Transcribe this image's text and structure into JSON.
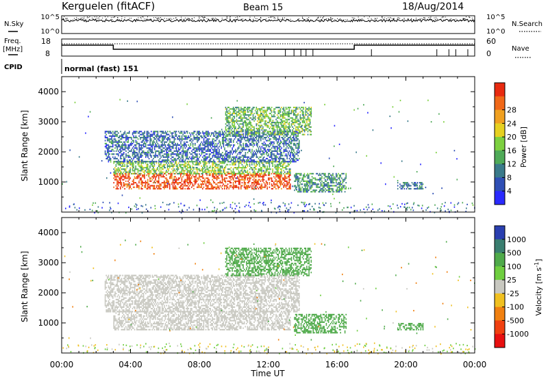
{
  "header": {
    "station": "Kerguelen (fitACF)",
    "beam": "Beam 15",
    "date": "18/Aug/2014"
  },
  "top_panels": {
    "nsky_label": "N.Sky",
    "nsky_ticks": [
      "10^5",
      "10^0"
    ],
    "nsearch_label": "N.Search",
    "nsearch_ticks": [
      "10^5",
      "10^0"
    ],
    "freq_label_1": "Freq.",
    "freq_label_2": "[MHz]",
    "freq_ticks": [
      "18",
      "8"
    ],
    "nave_label": "Nave",
    "nave_ticks": [
      "60",
      "0"
    ],
    "cpid_label": "CPID",
    "cpid_text": "normal (fast) 151"
  },
  "chart_data": [
    {
      "type": "heatmap",
      "name": "power",
      "ylabel": "Slant Range [km]",
      "ylim": [
        0,
        4500
      ],
      "yticks": [
        "1000",
        "2000",
        "3000",
        "4000"
      ],
      "colorbar_label": "Power [dB]",
      "colorbar_ticks": [
        "4",
        "8",
        "12",
        "16",
        "20",
        "24",
        "28"
      ],
      "colorbar_range": [
        0,
        30
      ],
      "colors": [
        "#2a2aff",
        "#2f4fb5",
        "#3a7a8a",
        "#4faa58",
        "#7dd040",
        "#e6d020",
        "#f0a020",
        "#f06818",
        "#e82a10"
      ],
      "regions": [
        {
          "t": [
            3.0,
            13.3
          ],
          "r": [
            800,
            1300
          ],
          "level": 27
        },
        {
          "t": [
            3.0,
            13.3
          ],
          "r": [
            1300,
            1700
          ],
          "level": 14
        },
        {
          "t": [
            2.5,
            13.8
          ],
          "r": [
            1700,
            2700
          ],
          "level": 7
        },
        {
          "t": [
            9.5,
            14.5
          ],
          "r": [
            2600,
            3500
          ],
          "level": 13
        },
        {
          "t": [
            13.5,
            16.5
          ],
          "r": [
            700,
            1300
          ],
          "level": 10
        },
        {
          "t": [
            19.5,
            21.0
          ],
          "r": [
            800,
            1000
          ],
          "level": 8
        }
      ]
    },
    {
      "type": "heatmap",
      "name": "velocity",
      "ylabel": "Slant Range [km]",
      "ylim": [
        0,
        4500
      ],
      "yticks": [
        "1000",
        "2000",
        "3000",
        "4000"
      ],
      "colorbar_label": "Velocity [m s^-1]",
      "colorbar_ticks": [
        "1000",
        "500",
        "100",
        "25",
        "-25",
        "-100",
        "-500",
        "-1000"
      ],
      "colors": [
        "#2a3fb0",
        "#3a7e70",
        "#4faa4a",
        "#6fce40",
        "#c8c8c0",
        "#f0c020",
        "#f08010",
        "#f04010",
        "#e81010"
      ],
      "regions": [
        {
          "t": [
            3.0,
            13.3
          ],
          "r": [
            800,
            1400
          ],
          "level": 0
        },
        {
          "t": [
            2.5,
            13.8
          ],
          "r": [
            1400,
            2600
          ],
          "level": 0
        },
        {
          "t": [
            9.5,
            14.5
          ],
          "r": [
            2600,
            3500
          ],
          "level": 120
        },
        {
          "t": [
            13.5,
            16.5
          ],
          "r": [
            700,
            1300
          ],
          "level": 150
        },
        {
          "t": [
            19.5,
            21.0
          ],
          "r": [
            800,
            1000
          ],
          "level": 150
        }
      ]
    }
  ],
  "x_axis": {
    "label": "Time UT",
    "ticks": [
      "00:00",
      "04:00",
      "08:00",
      "12:00",
      "16:00",
      "20:00",
      "00:00"
    ],
    "range_hours": [
      0,
      24
    ]
  }
}
